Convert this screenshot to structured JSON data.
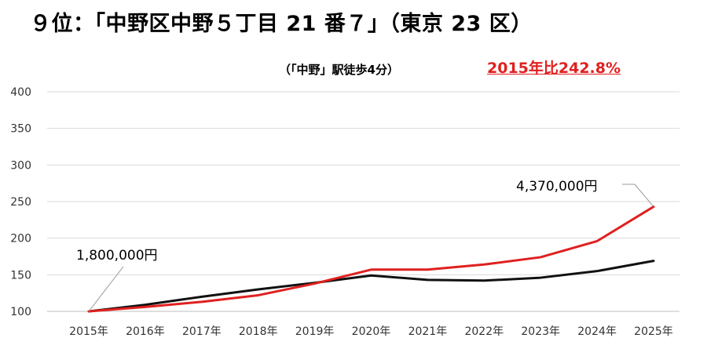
{
  "title": "９位：「中野区中野５丁目 21 番７」（東京 23 区）",
  "subtitle": "（「中野」駅徒歩4分）",
  "growth_label": "2015年比242.8%",
  "colors": {
    "red": "#e02020",
    "black": "#111111",
    "grid": "#d9d9d9"
  },
  "chart_data": {
    "type": "line",
    "categories": [
      "2015年",
      "2016年",
      "2017年",
      "2018年",
      "2019年",
      "2020年",
      "2021年",
      "2022年",
      "2023年",
      "2024年",
      "2025年"
    ],
    "ylim": [
      100,
      400
    ],
    "yticks": [
      100,
      150,
      200,
      250,
      300,
      350,
      400
    ],
    "grid": true,
    "series": [
      {
        "color": "#e02020",
        "values": [
          100,
          106,
          113,
          122,
          138,
          157,
          157,
          164,
          174,
          196,
          243
        ]
      },
      {
        "color": "#111111",
        "values": [
          100,
          109,
          120,
          130,
          139,
          149,
          143,
          142,
          146,
          155,
          169
        ]
      }
    ],
    "annotations": [
      {
        "text": "1,800,000円",
        "series": 1,
        "index": 0
      },
      {
        "text": "4,370,000円",
        "series": 0,
        "index": 10
      }
    ]
  }
}
